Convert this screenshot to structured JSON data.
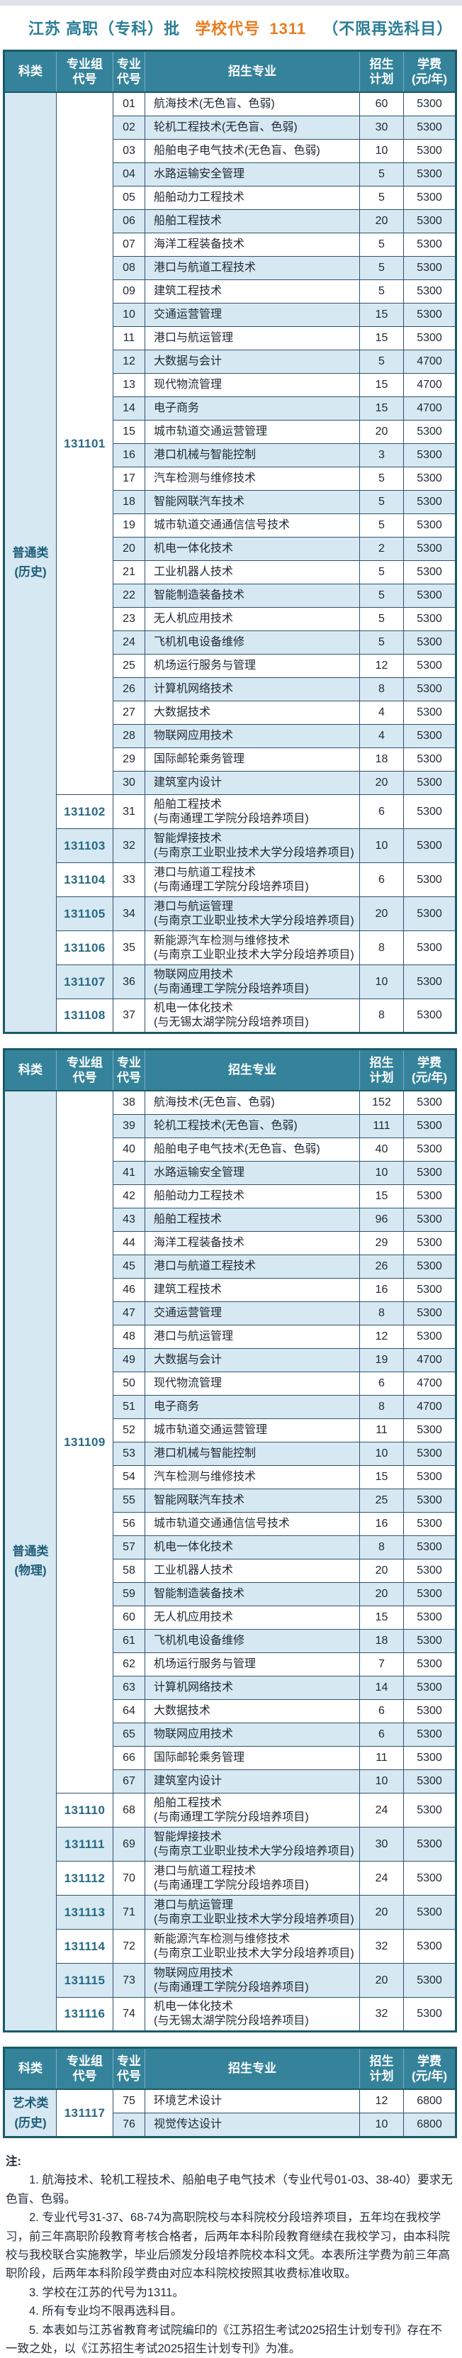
{
  "header": {
    "batch_title": "江苏 高职（专科）批",
    "school_code_label": "学校代号",
    "school_code": "1311",
    "subject_note": "（不限再选科目）"
  },
  "colors": {
    "header_teal": "#35839b",
    "title_teal": "#2b7d96",
    "title_orange": "#e87c1e",
    "row_alt_blue": "#d6e8f2",
    "outer_border": "#1a5a68",
    "cell_border": "#33516d",
    "group_code_text": "#266a85"
  },
  "column_headers": {
    "category": "科类",
    "group_code": "专业组\n代号",
    "major_code": "专业\n代号",
    "major": "招生专业",
    "plan": "招生\n计划",
    "fee": "学费\n(元/年)"
  },
  "tables": [
    {
      "category": "普通类\n(历史)",
      "groups": [
        {
          "code": "131101",
          "majors": [
            {
              "code": "01",
              "name": "航海技术(无色盲、色弱)",
              "plan": "60",
              "fee": "5300"
            },
            {
              "code": "02",
              "name": "轮机工程技术(无色盲、色弱)",
              "plan": "30",
              "fee": "5300"
            },
            {
              "code": "03",
              "name": "船舶电子电气技术(无色盲、色弱)",
              "plan": "10",
              "fee": "5300"
            },
            {
              "code": "04",
              "name": "水路运输安全管理",
              "plan": "5",
              "fee": "5300"
            },
            {
              "code": "05",
              "name": "船舶动力工程技术",
              "plan": "5",
              "fee": "5300"
            },
            {
              "code": "06",
              "name": "船舶工程技术",
              "plan": "20",
              "fee": "5300"
            },
            {
              "code": "07",
              "name": "海洋工程装备技术",
              "plan": "5",
              "fee": "5300"
            },
            {
              "code": "08",
              "name": "港口与航道工程技术",
              "plan": "5",
              "fee": "5300"
            },
            {
              "code": "09",
              "name": "建筑工程技术",
              "plan": "5",
              "fee": "5300"
            },
            {
              "code": "10",
              "name": "交通运营管理",
              "plan": "15",
              "fee": "5300"
            },
            {
              "code": "11",
              "name": "港口与航运管理",
              "plan": "15",
              "fee": "5300"
            },
            {
              "code": "12",
              "name": "大数据与会计",
              "plan": "5",
              "fee": "4700"
            },
            {
              "code": "13",
              "name": "现代物流管理",
              "plan": "15",
              "fee": "4700"
            },
            {
              "code": "14",
              "name": "电子商务",
              "plan": "15",
              "fee": "4700"
            },
            {
              "code": "15",
              "name": "城市轨道交通运营管理",
              "plan": "20",
              "fee": "5300"
            },
            {
              "code": "16",
              "name": "港口机械与智能控制",
              "plan": "3",
              "fee": "5300"
            },
            {
              "code": "17",
              "name": "汽车检测与维修技术",
              "plan": "5",
              "fee": "5300"
            },
            {
              "code": "18",
              "name": "智能网联汽车技术",
              "plan": "5",
              "fee": "5300"
            },
            {
              "code": "19",
              "name": "城市轨道交通通信信号技术",
              "plan": "5",
              "fee": "5300"
            },
            {
              "code": "20",
              "name": "机电一体化技术",
              "plan": "2",
              "fee": "5300"
            },
            {
              "code": "21",
              "name": "工业机器人技术",
              "plan": "5",
              "fee": "5300"
            },
            {
              "code": "22",
              "name": "智能制造装备技术",
              "plan": "5",
              "fee": "5300"
            },
            {
              "code": "23",
              "name": "无人机应用技术",
              "plan": "5",
              "fee": "5300"
            },
            {
              "code": "24",
              "name": "飞机机电设备维修",
              "plan": "5",
              "fee": "5300"
            },
            {
              "code": "25",
              "name": "机场运行服务与管理",
              "plan": "12",
              "fee": "5300"
            },
            {
              "code": "26",
              "name": "计算机网络技术",
              "plan": "8",
              "fee": "5300"
            },
            {
              "code": "27",
              "name": "大数据技术",
              "plan": "4",
              "fee": "5300"
            },
            {
              "code": "28",
              "name": "物联网应用技术",
              "plan": "4",
              "fee": "5300"
            },
            {
              "code": "29",
              "name": "国际邮轮乘务管理",
              "plan": "18",
              "fee": "5300"
            },
            {
              "code": "30",
              "name": "建筑室内设计",
              "plan": "20",
              "fee": "5300"
            }
          ]
        },
        {
          "code": "131102",
          "majors": [
            {
              "code": "31",
              "name": "船舶工程技术",
              "sub": "(与南通理工学院分段培养项目)",
              "plan": "6",
              "fee": "5300"
            }
          ]
        },
        {
          "code": "131103",
          "majors": [
            {
              "code": "32",
              "name": "智能焊接技术",
              "sub": "(与南京工业职业技术大学分段培养项目)",
              "plan": "10",
              "fee": "5300"
            }
          ]
        },
        {
          "code": "131104",
          "majors": [
            {
              "code": "33",
              "name": "港口与航道工程技术",
              "sub": "(与南通理工学院分段培养项目)",
              "plan": "6",
              "fee": "5300"
            }
          ]
        },
        {
          "code": "131105",
          "majors": [
            {
              "code": "34",
              "name": "港口与航运管理",
              "sub": "(与南京工业职业技术大学分段培养项目)",
              "plan": "20",
              "fee": "5300"
            }
          ]
        },
        {
          "code": "131106",
          "majors": [
            {
              "code": "35",
              "name": "新能源汽车检测与维修技术",
              "sub": "(与南京工业职业技术大学分段培养项目)",
              "plan": "8",
              "fee": "5300"
            }
          ]
        },
        {
          "code": "131107",
          "majors": [
            {
              "code": "36",
              "name": "物联网应用技术",
              "sub": "(与南通理工学院分段培养项目)",
              "plan": "10",
              "fee": "5300"
            }
          ]
        },
        {
          "code": "131108",
          "majors": [
            {
              "code": "37",
              "name": "机电一体化技术",
              "sub": "(与无锡太湖学院分段培养项目)",
              "plan": "8",
              "fee": "5300"
            }
          ]
        }
      ]
    },
    {
      "category": "普通类\n(物理)",
      "groups": [
        {
          "code": "131109",
          "majors": [
            {
              "code": "38",
              "name": "航海技术(无色盲、色弱)",
              "plan": "152",
              "fee": "5300"
            },
            {
              "code": "39",
              "name": "轮机工程技术(无色盲、色弱)",
              "plan": "111",
              "fee": "5300"
            },
            {
              "code": "40",
              "name": "船舶电子电气技术(无色盲、色弱)",
              "plan": "40",
              "fee": "5300"
            },
            {
              "code": "41",
              "name": "水路运输安全管理",
              "plan": "10",
              "fee": "5300"
            },
            {
              "code": "42",
              "name": "船舶动力工程技术",
              "plan": "15",
              "fee": "5300"
            },
            {
              "code": "43",
              "name": "船舶工程技术",
              "plan": "96",
              "fee": "5300"
            },
            {
              "code": "44",
              "name": "海洋工程装备技术",
              "plan": "29",
              "fee": "5300"
            },
            {
              "code": "45",
              "name": "港口与航道工程技术",
              "plan": "26",
              "fee": "5300"
            },
            {
              "code": "46",
              "name": "建筑工程技术",
              "plan": "16",
              "fee": "5300"
            },
            {
              "code": "47",
              "name": "交通运营管理",
              "plan": "8",
              "fee": "5300"
            },
            {
              "code": "48",
              "name": "港口与航运管理",
              "plan": "12",
              "fee": "5300"
            },
            {
              "code": "49",
              "name": "大数据与会计",
              "plan": "19",
              "fee": "4700"
            },
            {
              "code": "50",
              "name": "现代物流管理",
              "plan": "6",
              "fee": "4700"
            },
            {
              "code": "51",
              "name": "电子商务",
              "plan": "8",
              "fee": "4700"
            },
            {
              "code": "52",
              "name": "城市轨道交通运营管理",
              "plan": "11",
              "fee": "5300"
            },
            {
              "code": "53",
              "name": "港口机械与智能控制",
              "plan": "10",
              "fee": "5300"
            },
            {
              "code": "54",
              "name": "汽车检测与维修技术",
              "plan": "15",
              "fee": "5300"
            },
            {
              "code": "55",
              "name": "智能网联汽车技术",
              "plan": "25",
              "fee": "5300"
            },
            {
              "code": "56",
              "name": "城市轨道交通通信信号技术",
              "plan": "16",
              "fee": "5300"
            },
            {
              "code": "57",
              "name": "机电一体化技术",
              "plan": "8",
              "fee": "5300"
            },
            {
              "code": "58",
              "name": "工业机器人技术",
              "plan": "20",
              "fee": "5300"
            },
            {
              "code": "59",
              "name": "智能制造装备技术",
              "plan": "20",
              "fee": "5300"
            },
            {
              "code": "60",
              "name": "无人机应用技术",
              "plan": "15",
              "fee": "5300"
            },
            {
              "code": "61",
              "name": "飞机机电设备维修",
              "plan": "18",
              "fee": "5300"
            },
            {
              "code": "62",
              "name": "机场运行服务与管理",
              "plan": "7",
              "fee": "5300"
            },
            {
              "code": "63",
              "name": "计算机网络技术",
              "plan": "14",
              "fee": "5300"
            },
            {
              "code": "64",
              "name": "大数据技术",
              "plan": "6",
              "fee": "5300"
            },
            {
              "code": "65",
              "name": "物联网应用技术",
              "plan": "6",
              "fee": "5300"
            },
            {
              "code": "66",
              "name": "国际邮轮乘务管理",
              "plan": "11",
              "fee": "5300"
            },
            {
              "code": "67",
              "name": "建筑室内设计",
              "plan": "10",
              "fee": "5300"
            }
          ]
        },
        {
          "code": "131110",
          "majors": [
            {
              "code": "68",
              "name": "船舶工程技术",
              "sub": "(与南通理工学院分段培养项目)",
              "plan": "24",
              "fee": "5300"
            }
          ]
        },
        {
          "code": "131111",
          "majors": [
            {
              "code": "69",
              "name": "智能焊接技术",
              "sub": "(与南京工业职业技术大学分段培养项目)",
              "plan": "30",
              "fee": "5300"
            }
          ]
        },
        {
          "code": "131112",
          "majors": [
            {
              "code": "70",
              "name": "港口与航道工程技术",
              "sub": "(与南通理工学院分段培养项目)",
              "plan": "24",
              "fee": "5300"
            }
          ]
        },
        {
          "code": "131113",
          "majors": [
            {
              "code": "71",
              "name": "港口与航运管理",
              "sub": "(与南京工业职业技术大学分段培养项目)",
              "plan": "20",
              "fee": "5300"
            }
          ]
        },
        {
          "code": "131114",
          "majors": [
            {
              "code": "72",
              "name": "新能源汽车检测与维修技术",
              "sub": "(与南京工业职业技术大学分段培养项目)",
              "plan": "32",
              "fee": "5300"
            }
          ]
        },
        {
          "code": "131115",
          "majors": [
            {
              "code": "73",
              "name": "物联网应用技术",
              "sub": "(与南通理工学院分段培养项目)",
              "plan": "20",
              "fee": "5300"
            }
          ]
        },
        {
          "code": "131116",
          "majors": [
            {
              "code": "74",
              "name": "机电一体化技术",
              "sub": "(与无锡太湖学院分段培养项目)",
              "plan": "32",
              "fee": "5300"
            }
          ]
        }
      ]
    },
    {
      "category": "艺术类\n(历史)",
      "groups": [
        {
          "code": "131117",
          "majors": [
            {
              "code": "75",
              "name": "环境艺术设计",
              "plan": "12",
              "fee": "6800"
            },
            {
              "code": "76",
              "name": "视觉传达设计",
              "plan": "10",
              "fee": "6800"
            }
          ]
        }
      ]
    }
  ],
  "notes": {
    "title": "注:",
    "items": [
      "1. 航海技术、轮机工程技术、船舶电子电气技术（专业代号01-03、38-40）要求无色盲、色弱。",
      "2. 专业代号31-37、68-74为高职院校与本科院校分段培养项目，五年均在我校学习，前三年高职阶段教育考核合格者，后两年本科阶段教育继续在我校学习，由本科院校与我校联合实施教学，毕业后颁发分段培养院校本科文凭。本表所注学费为前三年高职阶段，后两年本科阶段学费由对应本科院校按照其收费标准收取。",
      "3. 学校在江苏的代号为1311。",
      "4. 所有专业均不限再选科目。",
      "5. 本表如与江苏省教育考试院编印的《江苏招生考试2025招生计划专刊》存在不一致之处，以《江苏招生考试2025招生计划专刊》为准。"
    ]
  }
}
